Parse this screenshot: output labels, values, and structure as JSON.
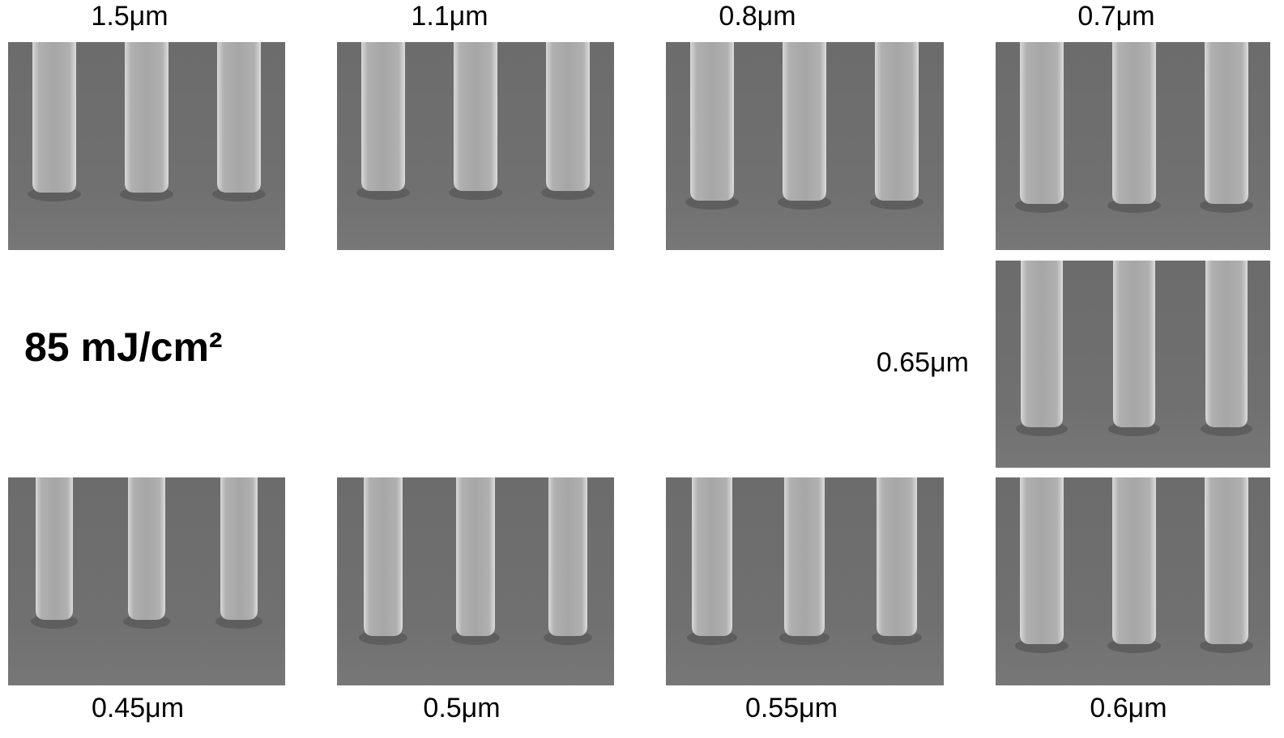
{
  "dose_label": "85 mJ/cm²",
  "panels": [
    {
      "label": "1.5μm"
    },
    {
      "label": "1.1μm"
    },
    {
      "label": "0.8μm"
    },
    {
      "label": "0.7μm"
    },
    {
      "label": "0.65μm"
    },
    {
      "label": "0.45μm"
    },
    {
      "label": "0.5μm"
    },
    {
      "label": "0.55μm"
    },
    {
      "label": "0.6μm"
    }
  ]
}
